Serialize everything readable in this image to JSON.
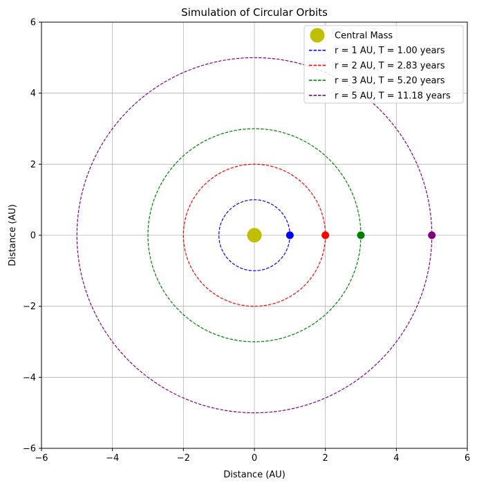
{
  "chart_data": {
    "type": "scatter",
    "title": "Simulation of Circular Orbits",
    "xlabel": "Distance (AU)",
    "ylabel": "Distance (AU)",
    "xlim": [
      -6,
      6
    ],
    "ylim": [
      -6,
      6
    ],
    "xticks": [
      -6,
      -4,
      -2,
      0,
      2,
      4,
      6
    ],
    "yticks": [
      -6,
      -4,
      -2,
      0,
      2,
      4,
      6
    ],
    "grid": true,
    "legend_position": "top-right",
    "central_mass": {
      "name": "Central Mass",
      "x": 0,
      "y": 0,
      "color": "#bfbf00"
    },
    "series": [
      {
        "name": "r = 1 AU, T = 1.00 years",
        "radius": 1,
        "planet_x": 1,
        "planet_y": 0,
        "color": "#0000ff"
      },
      {
        "name": "r = 2 AU, T = 2.83 years",
        "radius": 2,
        "planet_x": 2,
        "planet_y": 0,
        "color": "#ff0000"
      },
      {
        "name": "r = 3 AU, T = 5.20 years",
        "radius": 3,
        "planet_x": 3,
        "planet_y": 0,
        "color": "#008000"
      },
      {
        "name": "r = 5 AU, T = 11.18 years",
        "radius": 5,
        "planet_x": 5,
        "planet_y": 0,
        "color": "#800080"
      }
    ]
  }
}
